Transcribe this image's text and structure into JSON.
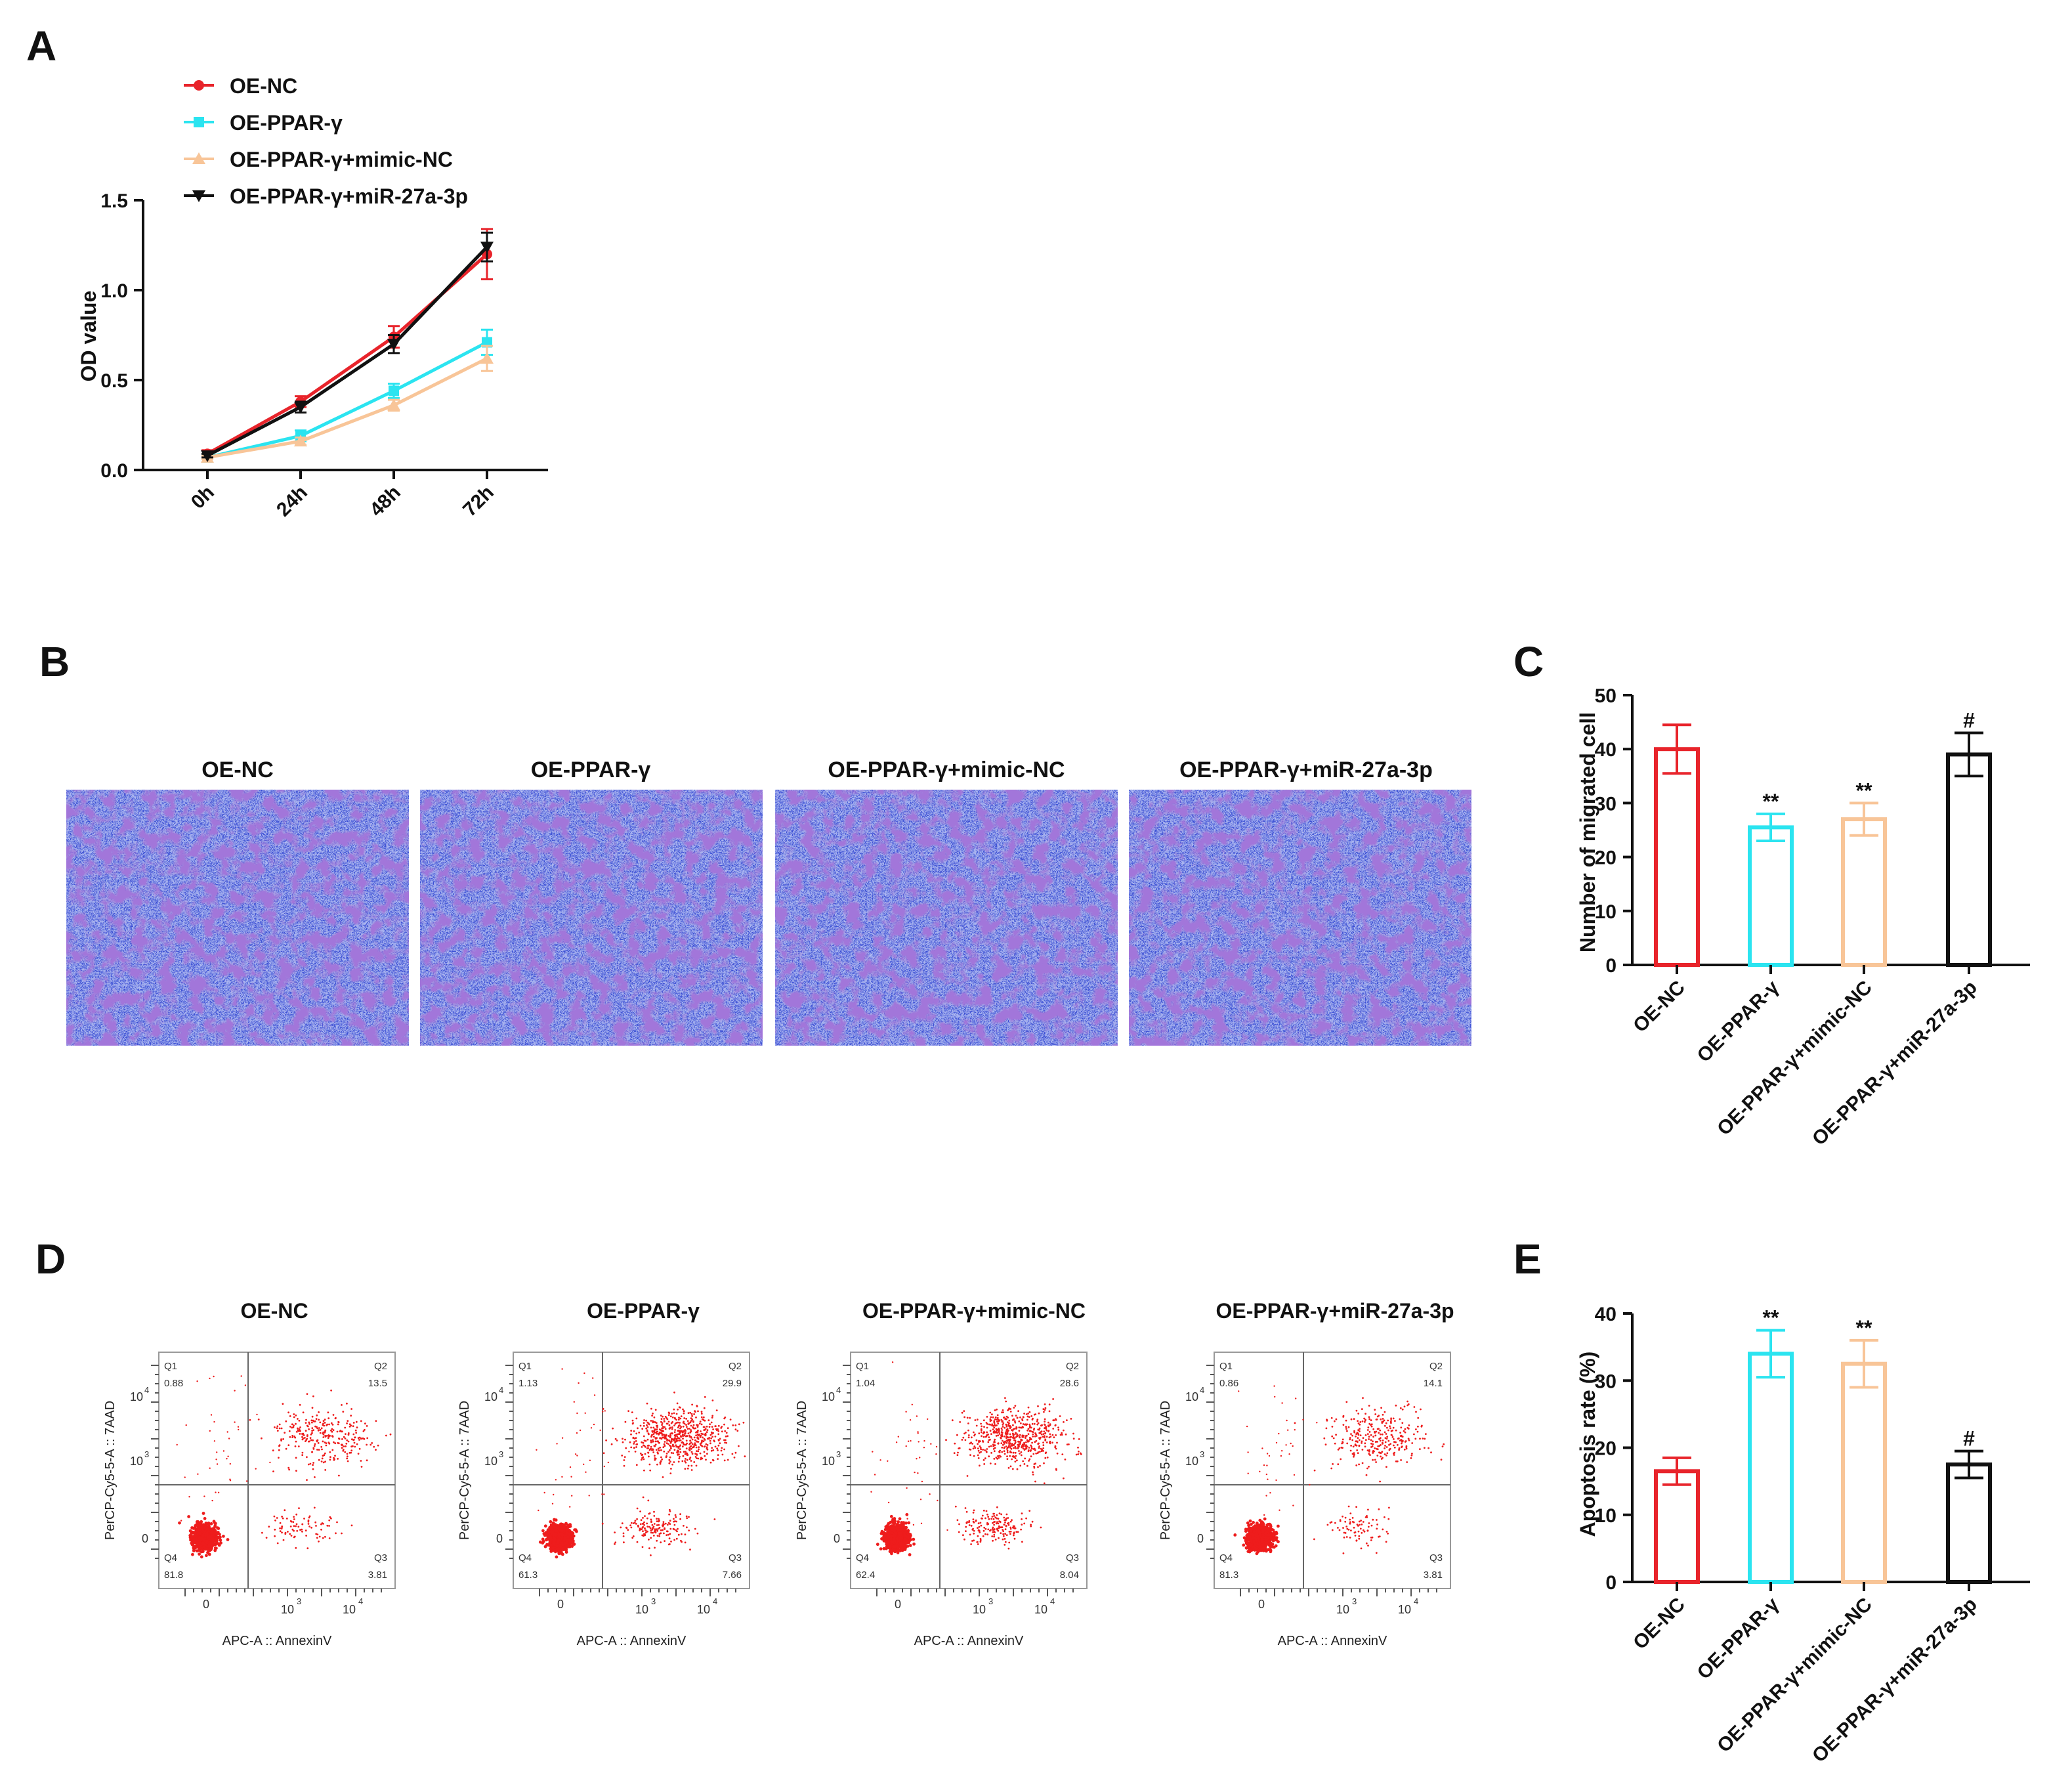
{
  "panels": {
    "A": {
      "letter": "A",
      "chart_data": {
        "type": "line",
        "title": "",
        "xlabel": "",
        "ylabel": "OD value",
        "categories": [
          "0h",
          "24h",
          "48h",
          "72h"
        ],
        "ylim": [
          0,
          1.5
        ],
        "yticks": [
          "0.0",
          "0.5",
          "1.0",
          "1.5"
        ],
        "legend_position": "top-left",
        "series": [
          {
            "name": "OE-NC",
            "color": "#e8242b",
            "marker": "circle",
            "values": [
              0.09,
              0.38,
              0.74,
              1.2
            ],
            "errors": [
              0.02,
              0.03,
              0.06,
              0.14
            ]
          },
          {
            "name": "OE-PPAR-γ",
            "color": "#2be4f0",
            "marker": "square",
            "values": [
              0.07,
              0.19,
              0.44,
              0.71
            ],
            "errors": [
              0.01,
              0.03,
              0.04,
              0.07
            ]
          },
          {
            "name": "OE-PPAR-γ+mimic-NC",
            "color": "#f8c598",
            "marker": "triangle",
            "values": [
              0.07,
              0.16,
              0.36,
              0.62
            ],
            "errors": [
              0.01,
              0.02,
              0.03,
              0.07
            ]
          },
          {
            "name": "OE-PPAR-γ+miR-27a-3p",
            "color": "#111111",
            "marker": "triangle-down",
            "values": [
              0.08,
              0.35,
              0.7,
              1.24
            ],
            "errors": [
              0.01,
              0.03,
              0.05,
              0.08
            ]
          }
        ]
      }
    },
    "B": {
      "letter": "B",
      "images": [
        {
          "label": "OE-NC"
        },
        {
          "label": "OE-PPAR-γ"
        },
        {
          "label": "OE-PPAR-γ+mimic-NC"
        },
        {
          "label": "OE-PPAR-γ+miR-27a-3p"
        }
      ],
      "stain_color": "#3b4fd4"
    },
    "C": {
      "letter": "C",
      "chart_data": {
        "type": "bar",
        "title": "",
        "xlabel": "",
        "ylabel": "Number of migrated cell",
        "categories": [
          "OE-NC",
          "OE-PPAR-γ",
          "OE-PPAR-γ+mimic-NC",
          "OE-PPAR-γ+miR-27a-3p"
        ],
        "values": [
          40,
          25.5,
          27,
          39
        ],
        "errors": [
          4.5,
          2.5,
          3,
          4
        ],
        "ylim": [
          0,
          50
        ],
        "yticks": [
          "0",
          "10",
          "20",
          "30",
          "40",
          "50"
        ],
        "colors": [
          "#e8242b",
          "#2be4f0",
          "#f8c598",
          "#111111"
        ],
        "annotations": [
          "",
          "**",
          "**",
          "#"
        ]
      }
    },
    "D": {
      "letter": "D",
      "xlabel": "APC-A :: AnnexinV",
      "ylabel": "PerCP-Cy5-5-A :: 7AAD",
      "axis_ticks": {
        "zero": "0",
        "t3": "10",
        "t4": "10",
        "e3": "3",
        "e4": "4"
      },
      "plots": [
        {
          "label": "OE-NC",
          "q1_label": "Q1",
          "q1": "0.88",
          "q2_label": "Q2",
          "q2": "13.5",
          "q3_label": "Q3",
          "q3": "3.81",
          "q4_label": "Q4",
          "q4": "81.8"
        },
        {
          "label": "OE-PPAR-γ",
          "q1_label": "Q1",
          "q1": "1.13",
          "q2_label": "Q2",
          "q2": "29.9",
          "q3_label": "Q3",
          "q3": "7.66",
          "q4_label": "Q4",
          "q4": "61.3"
        },
        {
          "label": "OE-PPAR-γ+mimic-NC",
          "q1_label": "Q1",
          "q1": "1.04",
          "q2_label": "Q2",
          "q2": "28.6",
          "q3_label": "Q3",
          "q3": "8.04",
          "q4_label": "Q4",
          "q4": "62.4"
        },
        {
          "label": "OE-PPAR-γ+miR-27a-3p",
          "q1_label": "Q1",
          "q1": "0.86",
          "q2_label": "Q2",
          "q2": "14.1",
          "q3_label": "Q3",
          "q3": "3.81",
          "q4_label": "Q4",
          "q4": "81.3"
        }
      ],
      "dot_color": "#ee1c1c"
    },
    "E": {
      "letter": "E",
      "chart_data": {
        "type": "bar",
        "title": "",
        "xlabel": "",
        "ylabel": "Apoptosis rate (%)",
        "categories": [
          "OE-NC",
          "OE-PPAR-γ",
          "OE-PPAR-γ+mimic-NC",
          "OE-PPAR-γ+miR-27a-3p"
        ],
        "values": [
          16.5,
          34,
          32.5,
          17.5
        ],
        "errors": [
          2,
          3.5,
          3.5,
          2
        ],
        "ylim": [
          0,
          40
        ],
        "yticks": [
          "0",
          "10",
          "20",
          "30",
          "40"
        ],
        "colors": [
          "#e8242b",
          "#2be4f0",
          "#f8c598",
          "#111111"
        ],
        "annotations": [
          "",
          "**",
          "**",
          "#"
        ]
      }
    }
  }
}
